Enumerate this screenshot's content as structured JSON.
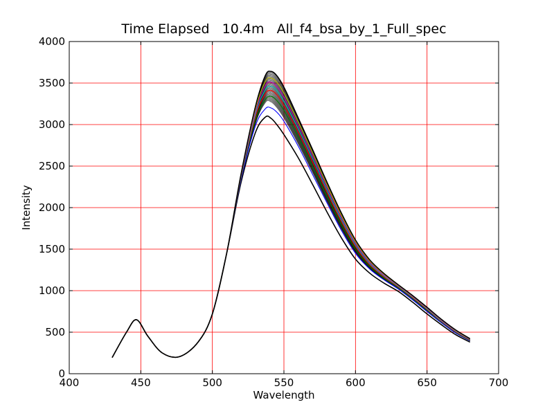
{
  "chart_data": {
    "type": "line",
    "title": "Time Elapsed   10.4m   All_f4_bsa_by_1_Full_spec",
    "xlabel": "Wavelength",
    "ylabel": "Intensity",
    "xlim": [
      400,
      700
    ],
    "ylim": [
      0,
      4000
    ],
    "xticks": [
      400,
      450,
      500,
      550,
      600,
      650,
      700
    ],
    "yticks": [
      0,
      500,
      1000,
      1500,
      2000,
      2500,
      3000,
      3500,
      4000
    ],
    "xtick_labels": [
      "400",
      "450",
      "500",
      "550",
      "600",
      "650",
      "700"
    ],
    "ytick_labels": [
      "0",
      "500",
      "1000",
      "1500",
      "2000",
      "2500",
      "3000",
      "3500",
      "4000"
    ],
    "grid": true,
    "grid_color": "#ff0000",
    "line_colors": [
      "#000000",
      "#0000ff",
      "#008000",
      "#ff0000",
      "#00bfbf",
      "#bf00bf",
      "#bfbf00",
      "#000000"
    ],
    "series": [
      {
        "x": [
          430,
          440,
          447,
          455,
          465,
          477,
          490,
          500,
          510,
          520,
          530,
          537,
          541,
          545,
          550,
          560,
          570,
          580,
          590,
          600,
          610,
          620,
          630,
          640,
          650,
          660,
          670,
          680
        ],
        "y": [
          195,
          500,
          650,
          450,
          250,
          205,
          380,
          720,
          1450,
          2300,
          2900,
          3090,
          3075,
          3000,
          2880,
          2600,
          2280,
          1950,
          1640,
          1380,
          1210,
          1090,
          990,
          860,
          720,
          590,
          470,
          380
        ]
      },
      {
        "x": [
          430,
          440,
          447,
          455,
          465,
          477,
          490,
          500,
          510,
          520,
          530,
          537,
          541,
          545,
          550,
          560,
          570,
          580,
          590,
          600,
          610,
          620,
          630,
          640,
          650,
          660,
          670,
          680
        ],
        "y": [
          195,
          500,
          650,
          450,
          250,
          205,
          380,
          720,
          1450,
          2330,
          2980,
          3190,
          3200,
          3150,
          3040,
          2740,
          2400,
          2060,
          1730,
          1450,
          1260,
          1130,
          1020,
          890,
          750,
          615,
          490,
          395
        ]
      },
      {
        "x": [
          430,
          440,
          447,
          455,
          465,
          477,
          490,
          500,
          510,
          520,
          530,
          537,
          541,
          545,
          550,
          560,
          570,
          580,
          590,
          600,
          610,
          620,
          630,
          640,
          650,
          660,
          670,
          680
        ],
        "y": [
          195,
          500,
          650,
          450,
          250,
          205,
          380,
          720,
          1450,
          2350,
          3050,
          3300,
          3340,
          3290,
          3170,
          2850,
          2500,
          2140,
          1800,
          1500,
          1290,
          1150,
          1035,
          905,
          765,
          625,
          500,
          400
        ]
      },
      {
        "x": [
          430,
          440,
          447,
          455,
          465,
          477,
          490,
          500,
          510,
          520,
          530,
          537,
          541,
          545,
          550,
          560,
          570,
          580,
          590,
          600,
          610,
          620,
          630,
          640,
          650,
          660,
          670,
          680
        ],
        "y": [
          195,
          500,
          650,
          450,
          250,
          205,
          380,
          720,
          1450,
          2360,
          3090,
          3370,
          3410,
          3360,
          3230,
          2910,
          2550,
          2185,
          1835,
          1530,
          1310,
          1165,
          1045,
          915,
          775,
          632,
          506,
          405
        ]
      },
      {
        "x": [
          430,
          440,
          447,
          455,
          465,
          477,
          490,
          500,
          510,
          520,
          530,
          537,
          541,
          545,
          550,
          560,
          570,
          580,
          590,
          600,
          610,
          620,
          630,
          640,
          650,
          660,
          670,
          680
        ],
        "y": [
          195,
          500,
          650,
          450,
          250,
          205,
          380,
          720,
          1450,
          2370,
          3120,
          3420,
          3460,
          3410,
          3280,
          2950,
          2590,
          2215,
          1860,
          1550,
          1325,
          1175,
          1052,
          922,
          782,
          638,
          512,
          410
        ]
      },
      {
        "x": [
          430,
          440,
          447,
          455,
          465,
          477,
          490,
          500,
          510,
          520,
          530,
          537,
          541,
          545,
          550,
          560,
          570,
          580,
          590,
          600,
          610,
          620,
          630,
          640,
          650,
          660,
          670,
          680
        ],
        "y": [
          195,
          500,
          650,
          450,
          250,
          205,
          380,
          720,
          1450,
          2380,
          3150,
          3470,
          3510,
          3460,
          3330,
          2990,
          2625,
          2245,
          1885,
          1570,
          1340,
          1185,
          1058,
          928,
          788,
          644,
          517,
          414
        ]
      },
      {
        "x": [
          430,
          440,
          447,
          455,
          465,
          477,
          490,
          500,
          510,
          520,
          530,
          537,
          541,
          545,
          550,
          560,
          570,
          580,
          590,
          600,
          610,
          620,
          630,
          640,
          650,
          660,
          670,
          680
        ],
        "y": [
          195,
          500,
          650,
          450,
          250,
          205,
          380,
          720,
          1450,
          2390,
          3180,
          3520,
          3560,
          3510,
          3380,
          3030,
          2660,
          2275,
          1910,
          1590,
          1355,
          1195,
          1064,
          934,
          794,
          650,
          522,
          418
        ]
      },
      {
        "x": [
          430,
          440,
          447,
          455,
          465,
          477,
          490,
          500,
          510,
          520,
          530,
          537,
          541,
          545,
          550,
          560,
          570,
          580,
          590,
          600,
          610,
          620,
          630,
          640,
          650,
          660,
          670,
          680
        ],
        "y": [
          195,
          500,
          650,
          450,
          250,
          205,
          380,
          720,
          1450,
          2400,
          3210,
          3590,
          3640,
          3590,
          3450,
          3080,
          2700,
          2310,
          1940,
          1610,
          1370,
          1205,
          1070,
          940,
          800,
          655,
          527,
          422
        ]
      }
    ]
  }
}
